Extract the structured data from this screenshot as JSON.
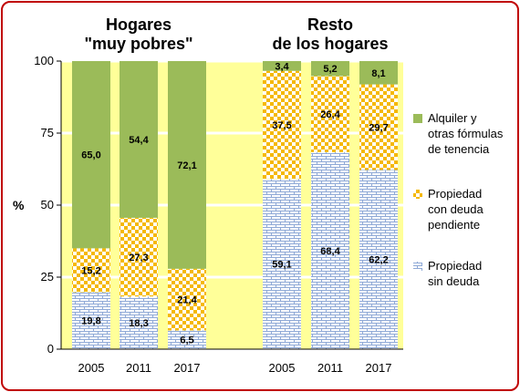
{
  "chart_data": {
    "type": "bar",
    "stacked": true,
    "ylabel": "%",
    "ylim": [
      0,
      100
    ],
    "yticks": [
      0,
      25,
      50,
      75,
      100
    ],
    "groups": [
      {
        "title_lines": [
          "Hogares",
          "\"muy pobres\""
        ],
        "categories": [
          "2005",
          "2011",
          "2017"
        ],
        "stacks": [
          {
            "values": [
              19.8,
              15.2,
              65.0
            ],
            "labels": [
              "19,8",
              "15,2",
              "65,0"
            ]
          },
          {
            "values": [
              18.3,
              27.3,
              54.4
            ],
            "labels": [
              "18,3",
              "27,3",
              "54,4"
            ]
          },
          {
            "values": [
              6.5,
              21.4,
              72.1
            ],
            "labels": [
              "6,5",
              "21,4",
              "72,1"
            ]
          }
        ]
      },
      {
        "title_lines": [
          "Resto",
          "de los hogares"
        ],
        "categories": [
          "2005",
          "2011",
          "2017"
        ],
        "stacks": [
          {
            "values": [
              59.1,
              37.5,
              3.4
            ],
            "labels": [
              "59,1",
              "37,5",
              "3,4"
            ]
          },
          {
            "values": [
              68.4,
              26.4,
              5.2
            ],
            "labels": [
              "68,4",
              "26,4",
              "5,2"
            ]
          },
          {
            "values": [
              62.2,
              29.7,
              8.1
            ],
            "labels": [
              "62,2",
              "29,7",
              "8,1"
            ]
          }
        ]
      }
    ],
    "series": [
      {
        "key": "sin_deuda",
        "legend_lines": [
          "Propiedad",
          "sin deuda"
        ],
        "pattern": "brick-blue"
      },
      {
        "key": "con_deuda",
        "legend_lines": [
          "Propiedad",
          "con deuda",
          "pendiente"
        ],
        "pattern": "checker-orange"
      },
      {
        "key": "alquiler",
        "legend_lines": [
          "Alquiler y",
          "otras fórmulas",
          "de tenencia"
        ],
        "color": "#9bbb59"
      }
    ],
    "background": "#ffff99",
    "grid": true,
    "legend_position": "right"
  }
}
